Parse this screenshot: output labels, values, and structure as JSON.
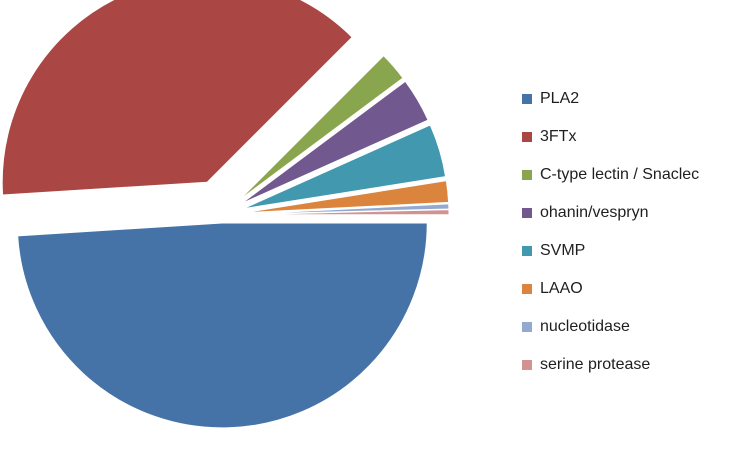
{
  "chart_data": {
    "type": "pie",
    "title": "",
    "legend_position": "right",
    "categories": [
      "PLA2",
      "3FTx",
      "C-type lectin / Snaclec",
      "ohanin/vespryn",
      "SVMP",
      "LAAO",
      "nucleotidase",
      "serine protease"
    ],
    "values": [
      49,
      38.5,
      2.3,
      3.5,
      4.2,
      1.7,
      0.4,
      0.4
    ],
    "colors": [
      "#4572A7",
      "#AA4643",
      "#89A54E",
      "#71588F",
      "#4198AF",
      "#DB843D",
      "#93A9CF",
      "#D19392"
    ],
    "exploded": true
  }
}
